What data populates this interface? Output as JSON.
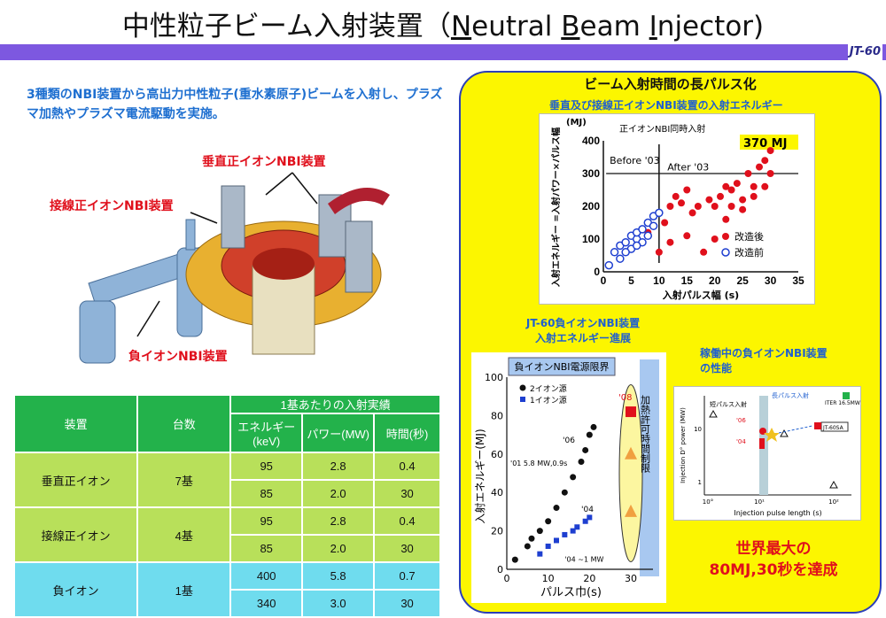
{
  "title": {
    "prefix": "中性粒子ビーム入射装置（",
    "N": "N",
    "eutral": "eutral ",
    "B": "B",
    "eam": "eam ",
    "I": "I",
    "njector": "njector)"
  },
  "band_tag": "JT-60",
  "intro": "3種類のNBI装置から高出力中性粒子(重水素原子)ビームを入射し、プラズマ加熱やプラズマ電流駆動を実施。",
  "labels": {
    "perp": "垂直正イオンNBI装置",
    "tang": "接線正イオンNBI装置",
    "neg": "負イオンNBI装置"
  },
  "table": {
    "col_device": "装置",
    "col_count": "台数",
    "col_group": "1基あたりの入射実績",
    "col_energy": "エネルギー(keV)",
    "col_power": "パワー(MW)",
    "col_time": "時間(秒)",
    "rows": [
      {
        "device": "垂直正イオン",
        "count": "7基",
        "sub": [
          [
            "95",
            "2.8",
            "0.4"
          ],
          [
            "85",
            "2.0",
            "30"
          ]
        ]
      },
      {
        "device": "接線正イオン",
        "count": "4基",
        "sub": [
          [
            "95",
            "2.8",
            "0.4"
          ],
          [
            "85",
            "2.0",
            "30"
          ]
        ]
      },
      {
        "device": "負イオン",
        "count": "1基",
        "sub": [
          [
            "400",
            "5.8",
            "0.7"
          ],
          [
            "340",
            "3.0",
            "30"
          ]
        ]
      }
    ]
  },
  "panel": {
    "title": "ビーム入射時間の長パルス化",
    "chart1_caption": "垂直及び接線正イオンNBI装置の入射エネルギー",
    "chart2_caption_1": "JT-60負イオンNBI装置",
    "chart2_caption_2": "入射エネルギー進展",
    "chart3_caption_1": "稼働中の負イオンNBI装置",
    "chart3_caption_2": "の性能",
    "record_1": "世界最大の",
    "record_2": "80MJ,30秒を達成"
  },
  "chart_data": [
    {
      "type": "scatter",
      "title": "正イオンNBI同時入射",
      "xlabel": "入射パルス幅 (s)",
      "ylabel": "入射エネルギー =入射パワー×パルス幅",
      "yunit": "(MJ)",
      "xlim": [
        0,
        35
      ],
      "ylim": [
        0,
        400
      ],
      "xticks": [
        "0",
        "5",
        "10",
        "15",
        "20",
        "25",
        "30",
        "35"
      ],
      "yticks": [
        "0",
        "100",
        "200",
        "300",
        "400"
      ],
      "annotation_max": "370 MJ",
      "annotation_before": "Before '03",
      "annotation_after": "After '03",
      "series": [
        {
          "name": "改造後",
          "color": "#e0101c",
          "points": [
            [
              8,
              120
            ],
            [
              10,
              180
            ],
            [
              11,
              150
            ],
            [
              12,
              200
            ],
            [
              13,
              230
            ],
            [
              14,
              210
            ],
            [
              15,
              250
            ],
            [
              16,
              180
            ],
            [
              17,
              200
            ],
            [
              18,
              60
            ],
            [
              19,
              220
            ],
            [
              20,
              200
            ],
            [
              21,
              230
            ],
            [
              22,
              260
            ],
            [
              23,
              250
            ],
            [
              24,
              270
            ],
            [
              25,
              220
            ],
            [
              26,
              300
            ],
            [
              27,
              260
            ],
            [
              28,
              320
            ],
            [
              29,
              340
            ],
            [
              30,
              370
            ],
            [
              30,
              300
            ],
            [
              29,
              260
            ],
            [
              27,
              230
            ],
            [
              25,
              190
            ],
            [
              23,
              200
            ],
            [
              22,
              160
            ],
            [
              15,
              110
            ],
            [
              12,
              90
            ],
            [
              20,
              100
            ],
            [
              10,
              60
            ]
          ]
        },
        {
          "name": "改造前",
          "color": "#1e3fd0",
          "points": [
            [
              2,
              60
            ],
            [
              3,
              80
            ],
            [
              4,
              90
            ],
            [
              5,
              110
            ],
            [
              5,
              70
            ],
            [
              6,
              100
            ],
            [
              6,
              120
            ],
            [
              7,
              130
            ],
            [
              7,
              90
            ],
            [
              8,
              150
            ],
            [
              8,
              110
            ],
            [
              9,
              170
            ],
            [
              9,
              140
            ],
            [
              10,
              180
            ],
            [
              3,
              40
            ],
            [
              4,
              60
            ],
            [
              6,
              80
            ],
            [
              1,
              20
            ]
          ]
        }
      ]
    },
    {
      "type": "scatter",
      "title": "負イオンNBI電源限界",
      "xlabel": "パルス巾(s)",
      "ylabel": "入射エネルギー(MJ)",
      "xlim": [
        0,
        30
      ],
      "ylim": [
        0,
        100
      ],
      "xticks": [
        "0",
        "10",
        "20",
        "30"
      ],
      "yticks": [
        "0",
        "20",
        "40",
        "60",
        "80",
        "100"
      ],
      "legend": [
        "2イオン源",
        "1イオン源"
      ],
      "annotations": [
        "'01 5.8 MW,0.9s",
        "'04",
        "'04 ~1 MW",
        "'06",
        "'08",
        "加熱許可時間制限"
      ],
      "series": [
        {
          "name": "2イオン源",
          "color": "#111111",
          "points": [
            [
              2,
              5
            ],
            [
              5,
              12
            ],
            [
              6,
              16
            ],
            [
              8,
              20
            ],
            [
              10,
              25
            ],
            [
              12,
              32
            ],
            [
              14,
              40
            ],
            [
              16,
              48
            ],
            [
              18,
              56
            ],
            [
              19,
              62
            ],
            [
              20,
              70
            ],
            [
              21,
              74
            ]
          ]
        },
        {
          "name": "1イオン源",
          "color": "#1e3fd0",
          "points": [
            [
              8,
              8
            ],
            [
              10,
              12
            ],
            [
              12,
              15
            ],
            [
              14,
              18
            ],
            [
              16,
              20
            ],
            [
              17,
              22
            ],
            [
              19,
              25
            ],
            [
              20,
              27
            ]
          ]
        },
        {
          "name": "'08",
          "color": "#e0101c",
          "points": [
            [
              30,
              82
            ]
          ]
        }
      ]
    },
    {
      "type": "scatter",
      "xlabel": "Injection pulse length (s)",
      "ylabel": "Injection D° power (MW)",
      "xticks": [
        "10°",
        "10¹",
        "10²"
      ],
      "yticks": [
        "1",
        "10"
      ],
      "annotations": [
        "短パルス入射",
        "長パルス入射",
        "ITER 16.5MW,3600s",
        "JT-60SA",
        "'04",
        "'06"
      ],
      "series": []
    }
  ],
  "colors": {
    "band": "#7d58e0",
    "panel": "#fcf600",
    "table_header": "#23b24b",
    "table_green": "#b8e05a",
    "table_cyan": "#6fdcee",
    "accent_red": "#e0101c",
    "accent_blue": "#1e6fd0"
  }
}
